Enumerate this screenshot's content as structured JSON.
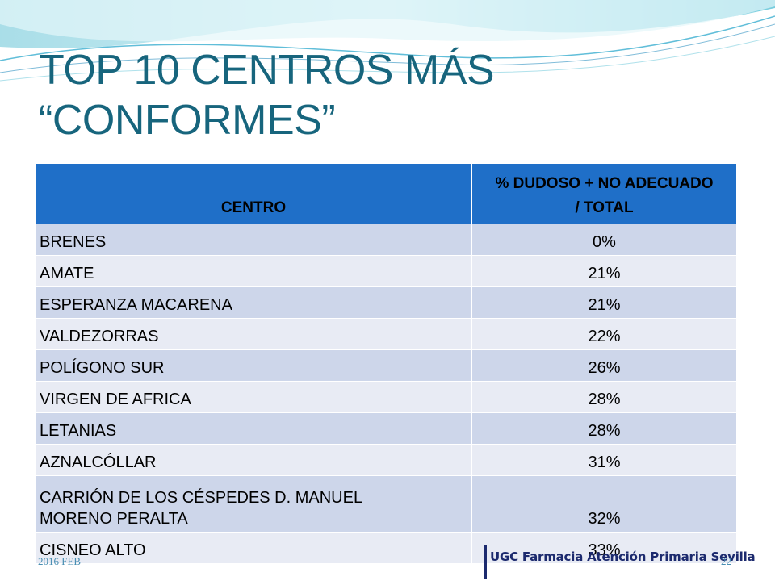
{
  "slide": {
    "title_line1": "TOP 10 CENTROS MÁS",
    "title_line2": "“CONFORMES”"
  },
  "table": {
    "headers": {
      "centro": "CENTRO",
      "percent_line1": "% DUDOSO + NO ADECUADO",
      "percent_line2": "/ TOTAL"
    },
    "rows": [
      {
        "centro": "BRENES",
        "value": "0%"
      },
      {
        "centro": "AMATE",
        "value": "21%"
      },
      {
        "centro": "ESPERANZA MACARENA",
        "value": "21%"
      },
      {
        "centro": "VALDEZORRAS",
        "value": "22%"
      },
      {
        "centro": "POLÍGONO SUR",
        "value": "26%"
      },
      {
        "centro": "VIRGEN DE AFRICA",
        "value": "28%"
      },
      {
        "centro": "LETANIAS",
        "value": "28%"
      },
      {
        "centro": "AZNALCÓLLAR",
        "value": "31%"
      },
      {
        "centro_line1": "CARRIÓN DE LOS CÉSPEDES D. MANUEL",
        "centro_line2": "MORENO PERALTA",
        "value": "32%"
      },
      {
        "centro": "CISNEO ALTO",
        "value": "33%"
      }
    ]
  },
  "footer": {
    "date": "2016 FEB",
    "page_number": "22",
    "logo_text": "UGC Farmacia Atención Primaria Sevilla"
  }
}
